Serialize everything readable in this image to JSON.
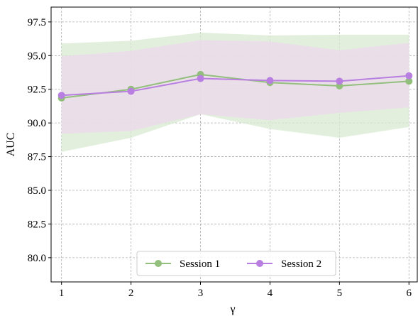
{
  "chart_data": {
    "type": "line",
    "title": "",
    "xlabel": "γ",
    "ylabel": "AUC",
    "x": [
      1,
      2,
      3,
      4,
      5,
      6
    ],
    "xticks": [
      "1",
      "2",
      "3",
      "4",
      "5",
      "6"
    ],
    "xlim": [
      0.85,
      6.12
    ],
    "ylim": [
      78.2,
      98.6
    ],
    "yticks": [
      "80.0",
      "82.5",
      "85.0",
      "87.5",
      "90.0",
      "92.5",
      "95.0",
      "97.5"
    ],
    "ytick_values": [
      80.0,
      82.5,
      85.0,
      87.5,
      90.0,
      92.5,
      95.0,
      97.5
    ],
    "grid": true,
    "legend_position": "bottom-center",
    "series": [
      {
        "name": "Session 1",
        "color": "#93bf7c",
        "band_color": "#d8ead2",
        "values": [
          91.85,
          92.5,
          93.6,
          93.0,
          92.75,
          93.1
        ],
        "band_upper": [
          95.9,
          96.1,
          96.7,
          96.5,
          96.55,
          96.55
        ],
        "band_lower": [
          87.85,
          88.9,
          90.65,
          89.55,
          88.9,
          89.7
        ]
      },
      {
        "name": "Session 2",
        "color": "#b87ee0",
        "band_color": "#ecd9ec",
        "values": [
          92.05,
          92.35,
          93.3,
          93.15,
          93.1,
          93.5
        ],
        "band_upper": [
          94.95,
          95.35,
          96.15,
          96.05,
          95.4,
          95.95
        ],
        "band_lower": [
          89.2,
          89.4,
          90.65,
          90.2,
          90.75,
          91.15
        ]
      }
    ]
  }
}
